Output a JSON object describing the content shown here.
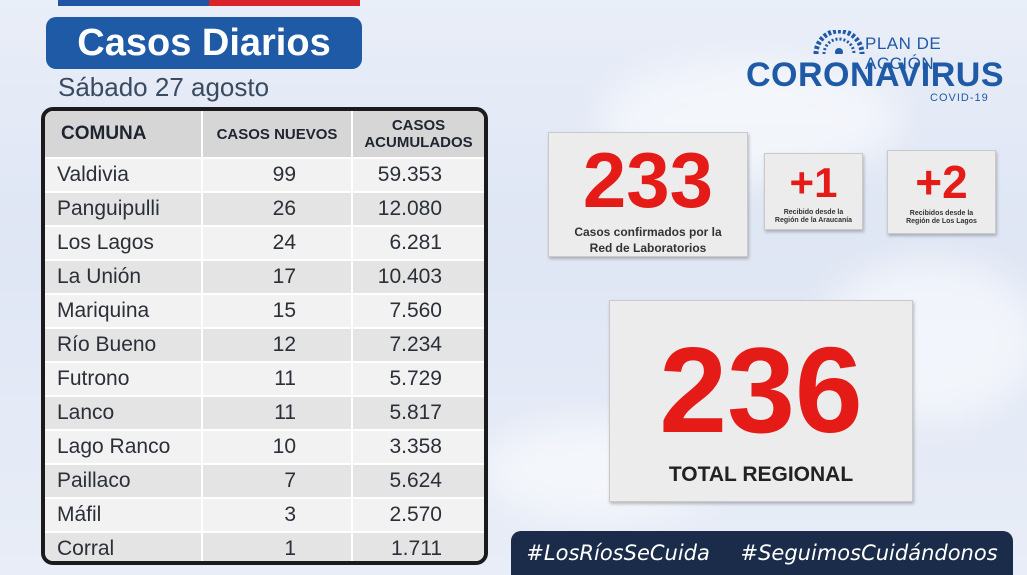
{
  "header": {
    "title": "Casos Diarios",
    "date": "Sábado 27 agosto"
  },
  "logo": {
    "plan": "PLAN DE ACCIÓN",
    "name": "CORONAVIRUS",
    "sub": "COVID-19"
  },
  "table": {
    "headers": {
      "comuna": "COMUNA",
      "nuevos": "CASOS NUEVOS",
      "acumulados_1": "CASOS",
      "acumulados_2": "ACUMULADOS"
    },
    "rows": [
      {
        "comuna": "Valdivia",
        "nuevos": "99",
        "acumulados": "59.353"
      },
      {
        "comuna": "Panguipulli",
        "nuevos": "26",
        "acumulados": "12.080"
      },
      {
        "comuna": "Los Lagos",
        "nuevos": "24",
        "acumulados": "6.281"
      },
      {
        "comuna": "La Unión",
        "nuevos": "17",
        "acumulados": "10.403"
      },
      {
        "comuna": "Mariquina",
        "nuevos": "15",
        "acumulados": "7.560"
      },
      {
        "comuna": "Río Bueno",
        "nuevos": "12",
        "acumulados": "7.234"
      },
      {
        "comuna": "Futrono",
        "nuevos": "11",
        "acumulados": "5.729"
      },
      {
        "comuna": "Lanco",
        "nuevos": "11",
        "acumulados": "5.817"
      },
      {
        "comuna": "Lago Ranco",
        "nuevos": "10",
        "acumulados": "3.358"
      },
      {
        "comuna": "Paillaco",
        "nuevos": "7",
        "acumulados": "5.624"
      },
      {
        "comuna": "Máfil",
        "nuevos": "3",
        "acumulados": "2.570"
      },
      {
        "comuna": "Corral",
        "nuevos": "1",
        "acumulados": "1.711"
      }
    ]
  },
  "confirmed": {
    "value": "233",
    "label_1": "Casos confirmados por la",
    "label_2": "Red de Laboratorios"
  },
  "araucania": {
    "value": "+1",
    "label_1": "Recibido desde la",
    "label_2": "Región de la Araucanía"
  },
  "loslagos": {
    "value": "+2",
    "label_1": "Recibidos desde la",
    "label_2": "Región de Los Lagos"
  },
  "total": {
    "value": "236",
    "label": "TOTAL REGIONAL"
  },
  "hashtags": [
    "#LosRíosSeCuida",
    "#SeguimosCuidándonos"
  ],
  "colors": {
    "brand_blue": "#1f5aa6",
    "accent_red": "#e41b17",
    "hashtag_bg": "#1b2b4a"
  }
}
